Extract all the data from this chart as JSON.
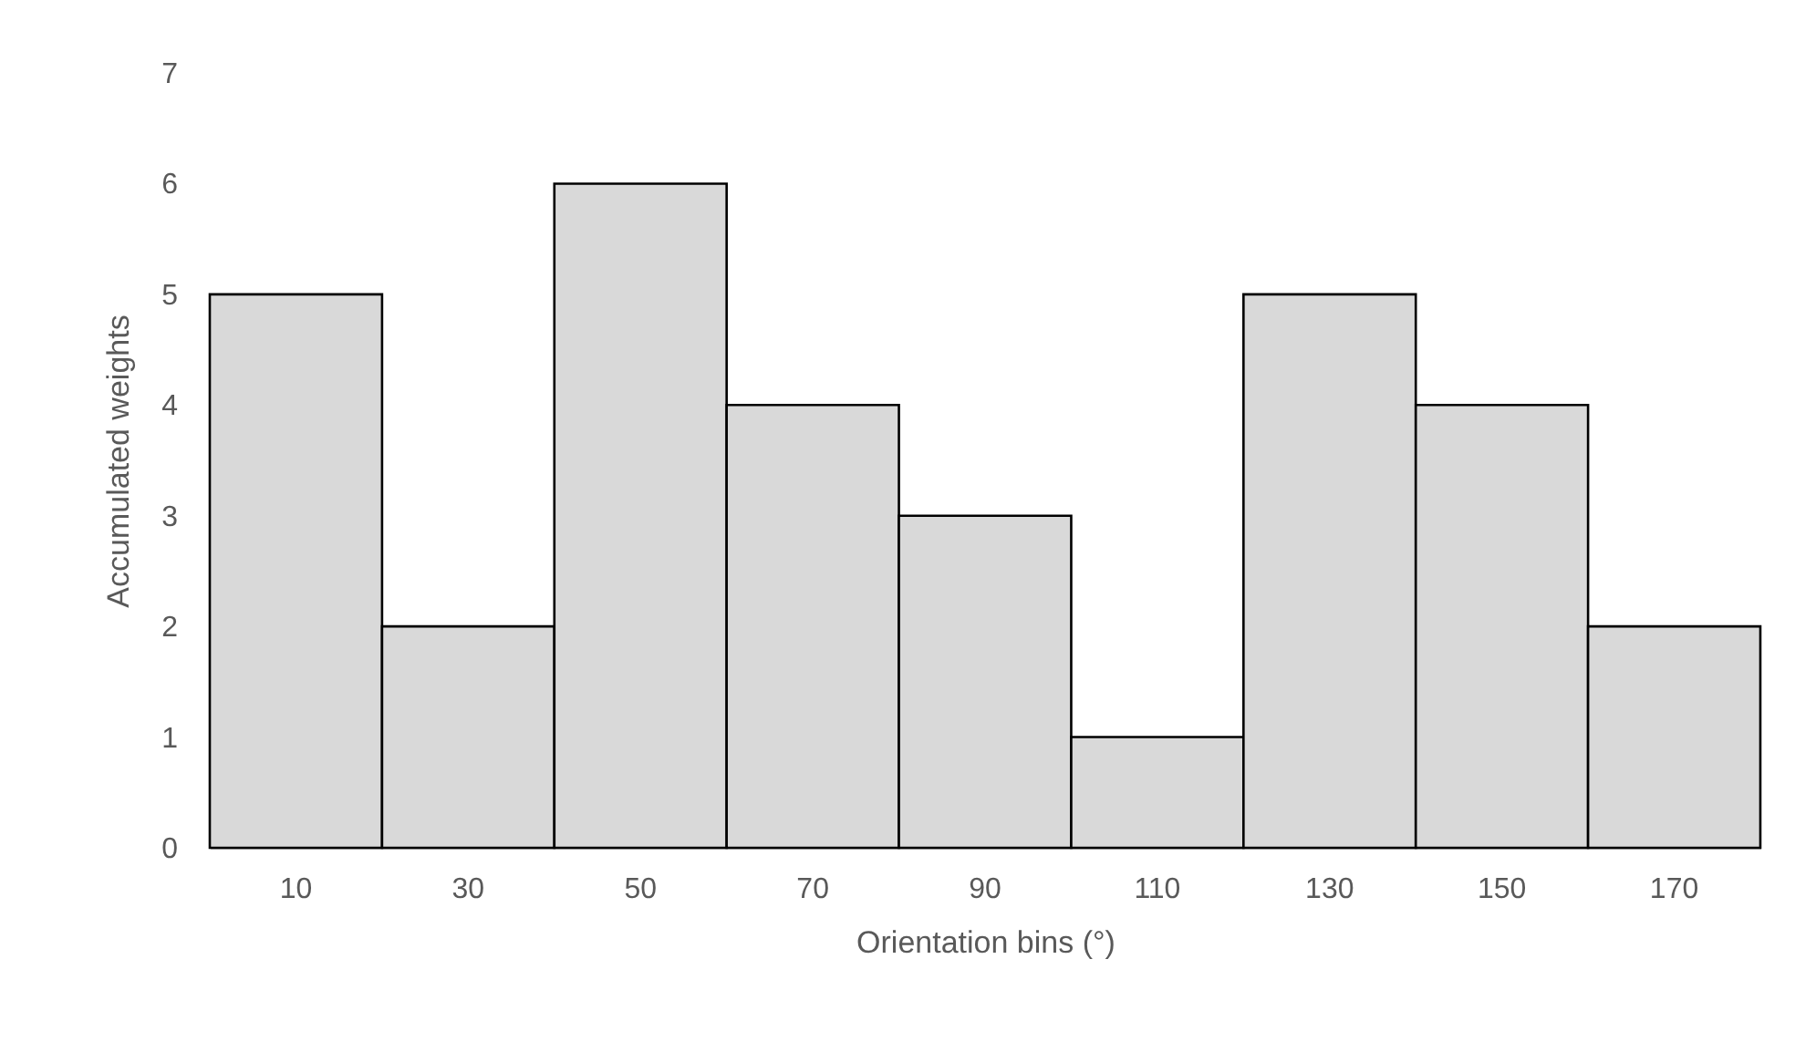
{
  "chart_data": {
    "type": "bar",
    "xlabel": "Orientation bins (°)",
    "ylabel": "Accumulated weights",
    "categories": [
      "10",
      "30",
      "50",
      "70",
      "90",
      "110",
      "130",
      "150",
      "170"
    ],
    "values": [
      5,
      2,
      6,
      4,
      3,
      1,
      5,
      4,
      2
    ],
    "color": "#d9d9d9",
    "ylim": [
      0,
      7
    ],
    "yticks": [
      0,
      1,
      2,
      3,
      4,
      5,
      6,
      7
    ],
    "grid": false
  }
}
